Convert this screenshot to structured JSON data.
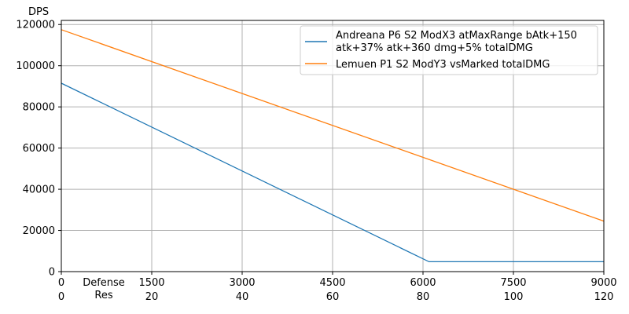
{
  "chart_data": {
    "type": "line",
    "ylabel": "DPS",
    "xlabel_lines": [
      "Defense",
      "Res"
    ],
    "xlim": [
      0,
      9000
    ],
    "ylim": [
      0,
      122000
    ],
    "grid": true,
    "legend_position": "top-right",
    "x_ticks_defense": [
      "0",
      "1500",
      "3000",
      "4500",
      "6000",
      "7500",
      "9000"
    ],
    "x_ticks_res": [
      "0",
      "20",
      "40",
      "60",
      "80",
      "100",
      "120"
    ],
    "x_tick_values": [
      0,
      1500,
      3000,
      4500,
      6000,
      7500,
      9000
    ],
    "y_ticks": [
      "0",
      "20000",
      "40000",
      "60000",
      "80000",
      "100000",
      "120000"
    ],
    "y_tick_values": [
      0,
      20000,
      40000,
      60000,
      80000,
      100000,
      120000
    ],
    "series": [
      {
        "name": "Andreana P6 S2 ModX3 atMaxRange bAtk+150 atk+37% atk+360 dmg+5% totalDMG",
        "legend_lines": [
          "Andreana P6 S2 ModX3 atMaxRange bAtk+150",
          "atk+37% atk+360 dmg+5% totalDMG"
        ],
        "color": "#1f77b4",
        "x": [
          0,
          6100,
          9000
        ],
        "y": [
          91500,
          4800,
          4800
        ]
      },
      {
        "name": "Lemuen P1 S2 ModY3 vsMarked totalDMG",
        "legend_lines": [
          "Lemuen P1 S2 ModY3 vsMarked totalDMG"
        ],
        "color": "#ff7f0e",
        "x": [
          0,
          9000
        ],
        "y": [
          117500,
          24500
        ]
      }
    ]
  }
}
